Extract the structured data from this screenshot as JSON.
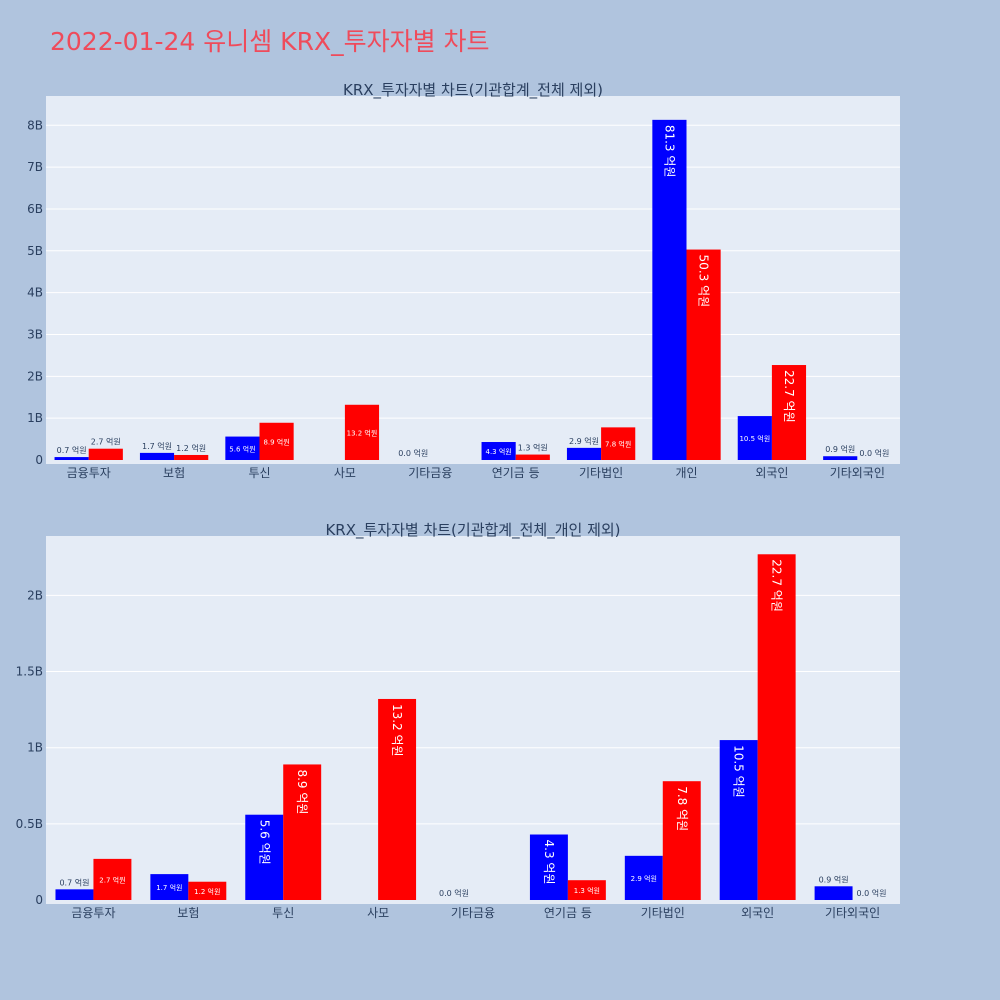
{
  "title": "2022-01-24 유니셈 KRX_투자자별 차트",
  "colors": {
    "buy": "#0000ff",
    "sell": "#ff0000",
    "plot_bg": "#e5ecf6",
    "paper_bg": "#b0c4de",
    "title": "#ef4b5b"
  },
  "chart_data": [
    {
      "type": "bar",
      "title": "KRX_투자자별 차트(기관합계_전체 제외)",
      "categories": [
        "금융투자",
        "보험",
        "투신",
        "사모",
        "기타금융",
        "연기금 등",
        "기타법인",
        "개인",
        "외국인",
        "기타외국인"
      ],
      "series": [
        {
          "values": [
            70000000,
            170000000,
            560000000,
            null,
            0,
            430000000,
            290000000,
            8130000000,
            1050000000,
            90000000
          ],
          "labels": [
            "0.7 억원",
            "1.7 억원",
            "5.6 억원",
            "",
            "0.0 억원",
            "4.3 억원",
            "2.9 억원",
            "81.3 억원",
            "10.5 억원",
            "0.9 억원"
          ]
        },
        {
          "values": [
            270000000,
            120000000,
            890000000,
            1320000000,
            null,
            130000000,
            780000000,
            5030000000,
            2270000000,
            0
          ],
          "labels": [
            "2.7 억원",
            "1.2 억원",
            "8.9 억원",
            "13.2 억원",
            "",
            "1.3 억원",
            "7.8 억원",
            "50.3 억원",
            "22.7 억원",
            "0.0 억원"
          ]
        }
      ],
      "ylim": [
        0,
        8700000000
      ],
      "yticks": [
        0,
        1000000000,
        2000000000,
        3000000000,
        4000000000,
        5000000000,
        6000000000,
        7000000000,
        8000000000
      ],
      "ytick_labels": [
        "0",
        "1B",
        "2B",
        "3B",
        "4B",
        "5B",
        "6B",
        "7B",
        "8B"
      ],
      "grid": true
    },
    {
      "type": "bar",
      "title": "KRX_투자자별 차트(기관합계_전체_개인 제외)",
      "categories": [
        "금융투자",
        "보험",
        "투신",
        "사모",
        "기타금융",
        "연기금 등",
        "기타법인",
        "외국인",
        "기타외국인"
      ],
      "series": [
        {
          "values": [
            70000000,
            170000000,
            560000000,
            null,
            0,
            430000000,
            290000000,
            1050000000,
            90000000
          ],
          "labels": [
            "0.7 억원",
            "1.7 억원",
            "5.6 억원",
            "",
            "0.0 억원",
            "4.3 억원",
            "2.9 억원",
            "10.5 억원",
            "0.9 억원"
          ]
        },
        {
          "values": [
            270000000,
            120000000,
            890000000,
            1320000000,
            null,
            130000000,
            780000000,
            2270000000,
            0
          ],
          "labels": [
            "2.7 억원",
            "1.2 억원",
            "8.9 억원",
            "13.2 억원",
            "",
            "1.3 억원",
            "7.8 억원",
            "22.7 억원",
            "0.0 억원"
          ]
        }
      ],
      "ylim": [
        0,
        2390000000
      ],
      "yticks": [
        0,
        500000000,
        1000000000,
        1500000000,
        2000000000
      ],
      "ytick_labels": [
        "0",
        "0.5B",
        "1B",
        "1.5B",
        "2B"
      ],
      "grid": true
    }
  ]
}
